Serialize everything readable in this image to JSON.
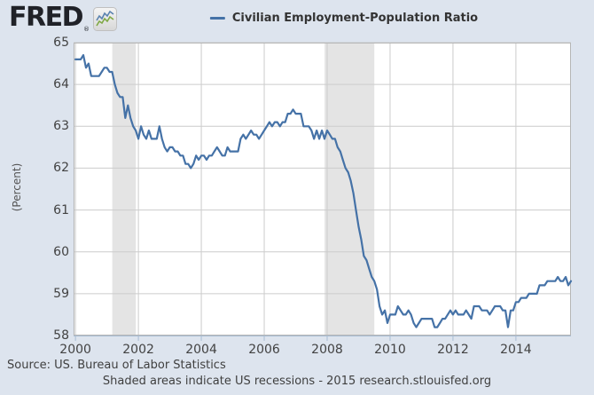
{
  "header": {
    "logo_text": "FRED",
    "logo_registered": "®",
    "legend": {
      "label": "Civilian Employment-Population Ratio",
      "line_color": "#4572a7"
    }
  },
  "chart_data": {
    "type": "line",
    "title": "Civilian Employment-Population Ratio",
    "ylabel": "(Percent)",
    "frequency": "monthly",
    "x_start_year": 2000,
    "x_end": "2015-10",
    "xlim": [
      1999.94,
      2015.75
    ],
    "ylim": [
      58,
      65
    ],
    "x_ticks": [
      2000,
      2002,
      2004,
      2006,
      2008,
      2010,
      2012,
      2014
    ],
    "y_ticks": [
      58,
      59,
      60,
      61,
      62,
      63,
      64,
      65
    ],
    "grid": "both",
    "legend_position": "top-center",
    "line_color": "#4572a7",
    "recession_color": "#e4e4e4",
    "recession_bands": [
      [
        2001.17,
        2001.92
      ],
      [
        2007.92,
        2009.5
      ]
    ],
    "values": [
      64.6,
      64.6,
      64.6,
      64.7,
      64.4,
      64.5,
      64.2,
      64.2,
      64.2,
      64.2,
      64.3,
      64.4,
      64.4,
      64.3,
      64.3,
      64.0,
      63.8,
      63.7,
      63.7,
      63.2,
      63.5,
      63.2,
      63.0,
      62.9,
      62.7,
      63.0,
      62.8,
      62.7,
      62.9,
      62.7,
      62.7,
      62.7,
      63.0,
      62.7,
      62.5,
      62.4,
      62.5,
      62.5,
      62.4,
      62.4,
      62.3,
      62.3,
      62.1,
      62.1,
      62.0,
      62.1,
      62.3,
      62.2,
      62.3,
      62.3,
      62.2,
      62.3,
      62.3,
      62.4,
      62.5,
      62.4,
      62.3,
      62.3,
      62.5,
      62.4,
      62.4,
      62.4,
      62.4,
      62.7,
      62.8,
      62.7,
      62.8,
      62.9,
      62.8,
      62.8,
      62.7,
      62.8,
      62.9,
      63.0,
      63.1,
      63.0,
      63.1,
      63.1,
      63.0,
      63.1,
      63.1,
      63.3,
      63.3,
      63.4,
      63.3,
      63.3,
      63.3,
      63.0,
      63.0,
      63.0,
      62.9,
      62.7,
      62.9,
      62.7,
      62.9,
      62.7,
      62.9,
      62.8,
      62.7,
      62.7,
      62.5,
      62.4,
      62.2,
      62.0,
      61.9,
      61.7,
      61.4,
      61.0,
      60.6,
      60.3,
      59.9,
      59.8,
      59.6,
      59.4,
      59.3,
      59.1,
      58.7,
      58.5,
      58.6,
      58.3,
      58.5,
      58.5,
      58.5,
      58.7,
      58.6,
      58.5,
      58.5,
      58.6,
      58.5,
      58.3,
      58.2,
      58.3,
      58.4,
      58.4,
      58.4,
      58.4,
      58.4,
      58.2,
      58.2,
      58.3,
      58.4,
      58.4,
      58.5,
      58.6,
      58.5,
      58.6,
      58.5,
      58.5,
      58.5,
      58.6,
      58.5,
      58.4,
      58.7,
      58.7,
      58.7,
      58.6,
      58.6,
      58.6,
      58.5,
      58.6,
      58.7,
      58.7,
      58.7,
      58.6,
      58.6,
      58.2,
      58.6,
      58.6,
      58.8,
      58.8,
      58.9,
      58.9,
      58.9,
      59.0,
      59.0,
      59.0,
      59.0,
      59.2,
      59.2,
      59.2,
      59.3,
      59.3,
      59.3,
      59.3,
      59.4,
      59.3,
      59.3,
      59.4,
      59.2,
      59.3
    ]
  },
  "footer": {
    "source": "Source: US. Bureau of Labor Statistics",
    "note": "Shaded areas indicate US recessions - 2015 research.stlouisfed.org"
  },
  "colors": {
    "background": "#dde4ee",
    "plot_background": "#ffffff",
    "gridline": "#cccccc",
    "plot_border": "#b6b6b6",
    "axis_line": "#a9bdd3",
    "text": "#424242"
  }
}
